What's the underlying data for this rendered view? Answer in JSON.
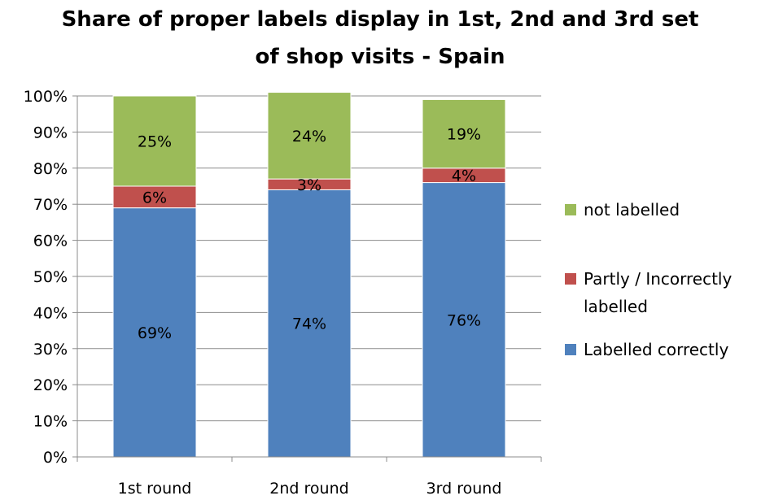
{
  "chart_data": {
    "type": "bar",
    "stacked": true,
    "percent_stacked": true,
    "title": "Share of proper labels display in 1st, 2nd and 3rd set of shop visits - Spain",
    "title_lines": [
      "Share of proper labels display in 1st, 2nd and 3rd set",
      "of shop visits - Spain"
    ],
    "xlabel": "",
    "ylabel": "",
    "ylim": [
      0,
      100
    ],
    "y_ticks": [
      "0%",
      "10%",
      "20%",
      "30%",
      "40%",
      "50%",
      "60%",
      "70%",
      "80%",
      "90%",
      "100%"
    ],
    "grid": true,
    "legend_position": "right",
    "categories": [
      "1st round",
      "2nd round",
      "3rd round"
    ],
    "series": [
      {
        "name": "Labelled correctly",
        "color": "#4f81bd",
        "values": [
          69,
          74,
          76
        ],
        "labels": [
          "69%",
          "74%",
          "76%"
        ]
      },
      {
        "name": "Partly / Incorrectly labelled",
        "legend_lines": [
          "Partly / Incorrectly",
          "labelled"
        ],
        "color": "#c0504d",
        "values": [
          6,
          3,
          4
        ],
        "labels": [
          "6%",
          "3%",
          "4%"
        ]
      },
      {
        "name": "not labelled",
        "color": "#9bbb59",
        "values": [
          25,
          24,
          19
        ],
        "labels": [
          "25%",
          "24%",
          "19%"
        ]
      }
    ],
    "legend_order": [
      2,
      1,
      0
    ]
  }
}
